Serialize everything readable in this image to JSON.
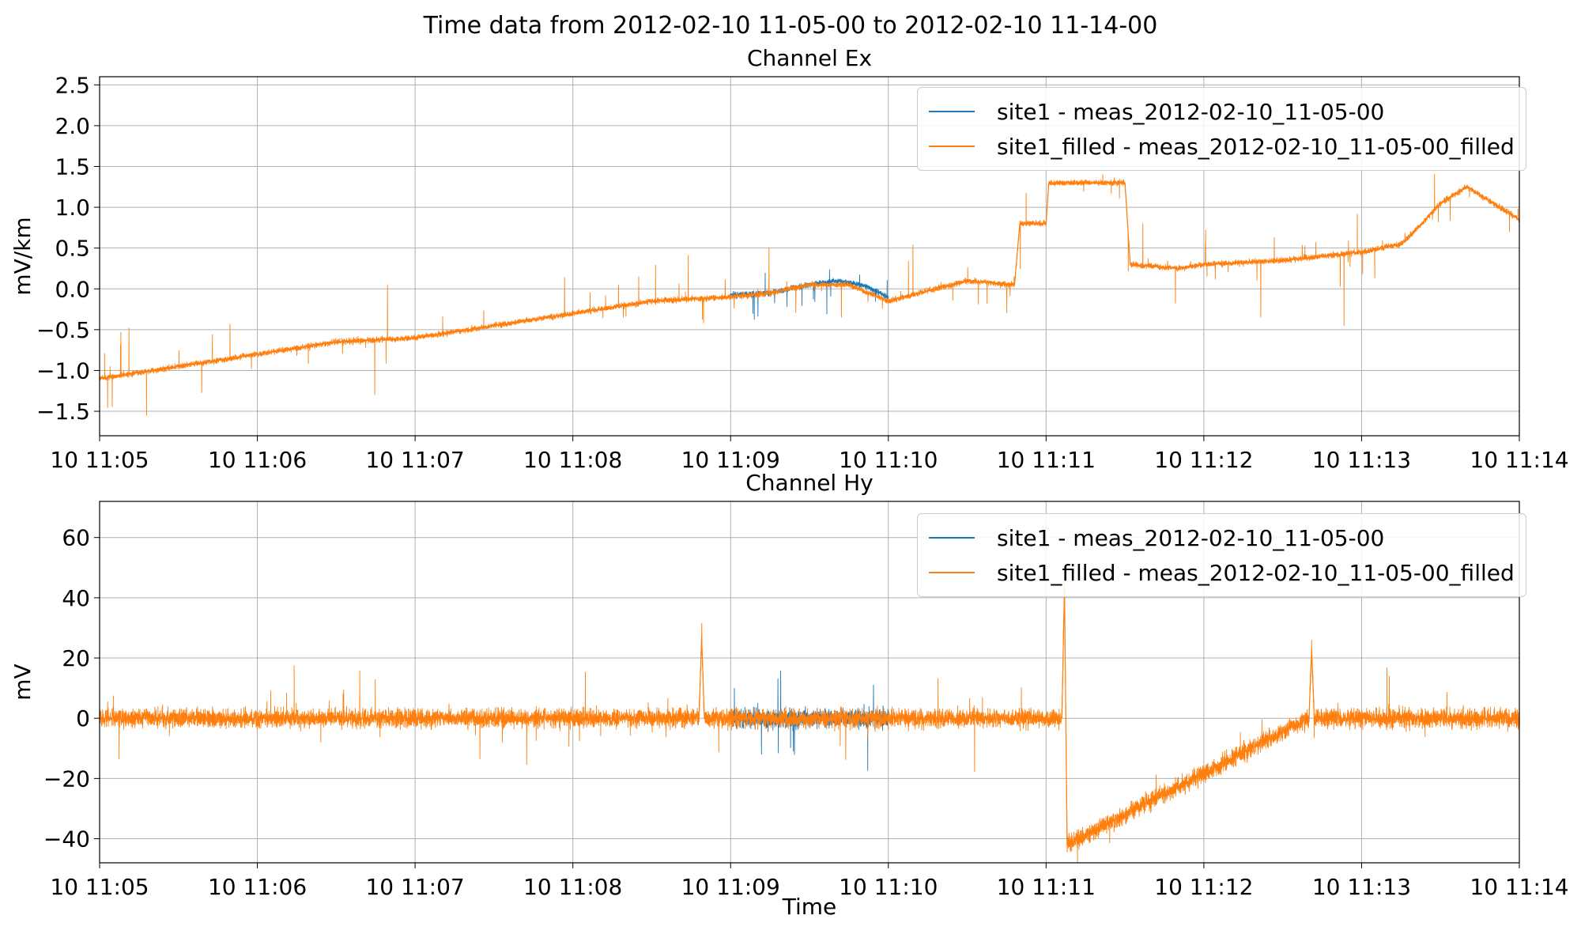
{
  "figure": {
    "title": "Time data from 2012-02-10 11-05-00 to 2012-02-10 11-14-00",
    "xlabel": "Time"
  },
  "colors": {
    "site1": "#1f77b4",
    "site1_filled": "#ff7f0e",
    "grid": "#b0b0b0"
  },
  "legend": [
    {
      "label": "site1 - meas_2012-02-10_11-05-00",
      "color": "#1f77b4"
    },
    {
      "label": "site1_filled - meas_2012-02-10_11-05-00_filled",
      "color": "#ff7f0e"
    }
  ],
  "chart_data": [
    {
      "type": "line",
      "title": "Channel Ex",
      "ylabel": "mV/km",
      "xlabel": "",
      "xlim": [
        "2012-02-10 11:05:00",
        "2012-02-10 11:14:00"
      ],
      "ylim": [
        -1.8,
        2.6
      ],
      "x_ticks": [
        "10 11:05",
        "10 11:06",
        "10 11:07",
        "10 11:08",
        "10 11:09",
        "10 11:10",
        "10 11:11",
        "10 11:12",
        "10 11:13",
        "10 11:14"
      ],
      "y_ticks": [
        2.5,
        2.0,
        1.5,
        1.0,
        0.5,
        0.0,
        -0.5,
        -1.0,
        -1.5
      ],
      "y_tick_labels": [
        "2.5",
        "2.0",
        "1.5",
        "1.0",
        "0.5",
        "0.0",
        "−0.5",
        "−1.0",
        "−1.5"
      ],
      "grid": true,
      "legend_position": "top-right",
      "series": [
        {
          "name": "site1 - meas_2012-02-10_11-05-00",
          "color": "#1f77b4",
          "x": [
            "11:09:00",
            "11:09:15",
            "11:09:30",
            "11:09:40",
            "11:09:50",
            "11:10:00"
          ],
          "y": [
            -0.08,
            -0.05,
            0.05,
            0.1,
            0.05,
            -0.1
          ]
        },
        {
          "name": "site1_filled - meas_2012-02-10_11-05-00_filled",
          "color": "#ff7f0e",
          "x": [
            "11:05:00",
            "11:05:30",
            "11:06:00",
            "11:06:30",
            "11:07:00",
            "11:07:30",
            "11:08:00",
            "11:08:30",
            "11:09:00",
            "11:09:15",
            "11:09:30",
            "11:09:45",
            "11:10:00",
            "11:10:30",
            "11:10:48",
            "11:10:50",
            "11:11:00",
            "11:11:01",
            "11:11:30",
            "11:11:32",
            "11:11:50",
            "11:12:00",
            "11:12:30",
            "11:13:00",
            "11:13:15",
            "11:13:20",
            "11:13:30",
            "11:13:40",
            "11:14:00"
          ],
          "y": [
            -1.1,
            -0.95,
            -0.8,
            -0.65,
            -0.6,
            -0.45,
            -0.3,
            -0.15,
            -0.1,
            -0.05,
            0.05,
            0.05,
            -0.15,
            0.1,
            0.05,
            0.8,
            0.8,
            1.3,
            1.3,
            0.3,
            0.25,
            0.3,
            0.35,
            0.45,
            0.55,
            0.7,
            1.05,
            1.25,
            0.85
          ]
        }
      ]
    },
    {
      "type": "line",
      "title": "Channel Hy",
      "ylabel": "mV",
      "xlabel": "Time",
      "xlim": [
        "2012-02-10 11:05:00",
        "2012-02-10 11:14:00"
      ],
      "ylim": [
        -48,
        72
      ],
      "x_ticks": [
        "10 11:05",
        "10 11:06",
        "10 11:07",
        "10 11:08",
        "10 11:09",
        "10 11:10",
        "10 11:11",
        "10 11:12",
        "10 11:13",
        "10 11:14"
      ],
      "y_ticks": [
        60,
        40,
        20,
        0,
        -20,
        -40
      ],
      "y_tick_labels": [
        "60",
        "40",
        "20",
        "0",
        "−20",
        "−40"
      ],
      "grid": true,
      "legend_position": "top-right",
      "series": [
        {
          "name": "site1 - meas_2012-02-10_11-05-00",
          "color": "#1f77b4",
          "x": [
            "11:09:00",
            "11:09:30",
            "11:10:00"
          ],
          "y": [
            0,
            0,
            0
          ]
        },
        {
          "name": "site1_filled - meas_2012-02-10_11-05-00_filled",
          "color": "#ff7f0e",
          "x": [
            "11:05:00",
            "11:08:48",
            "11:08:49",
            "11:08:50",
            "11:11:06",
            "11:11:07",
            "11:11:08",
            "11:12:40",
            "11:12:41",
            "11:12:42",
            "11:14:00"
          ],
          "y": [
            0,
            0,
            27,
            0,
            0,
            44,
            -42,
            0,
            23,
            0,
            0
          ]
        }
      ]
    }
  ]
}
